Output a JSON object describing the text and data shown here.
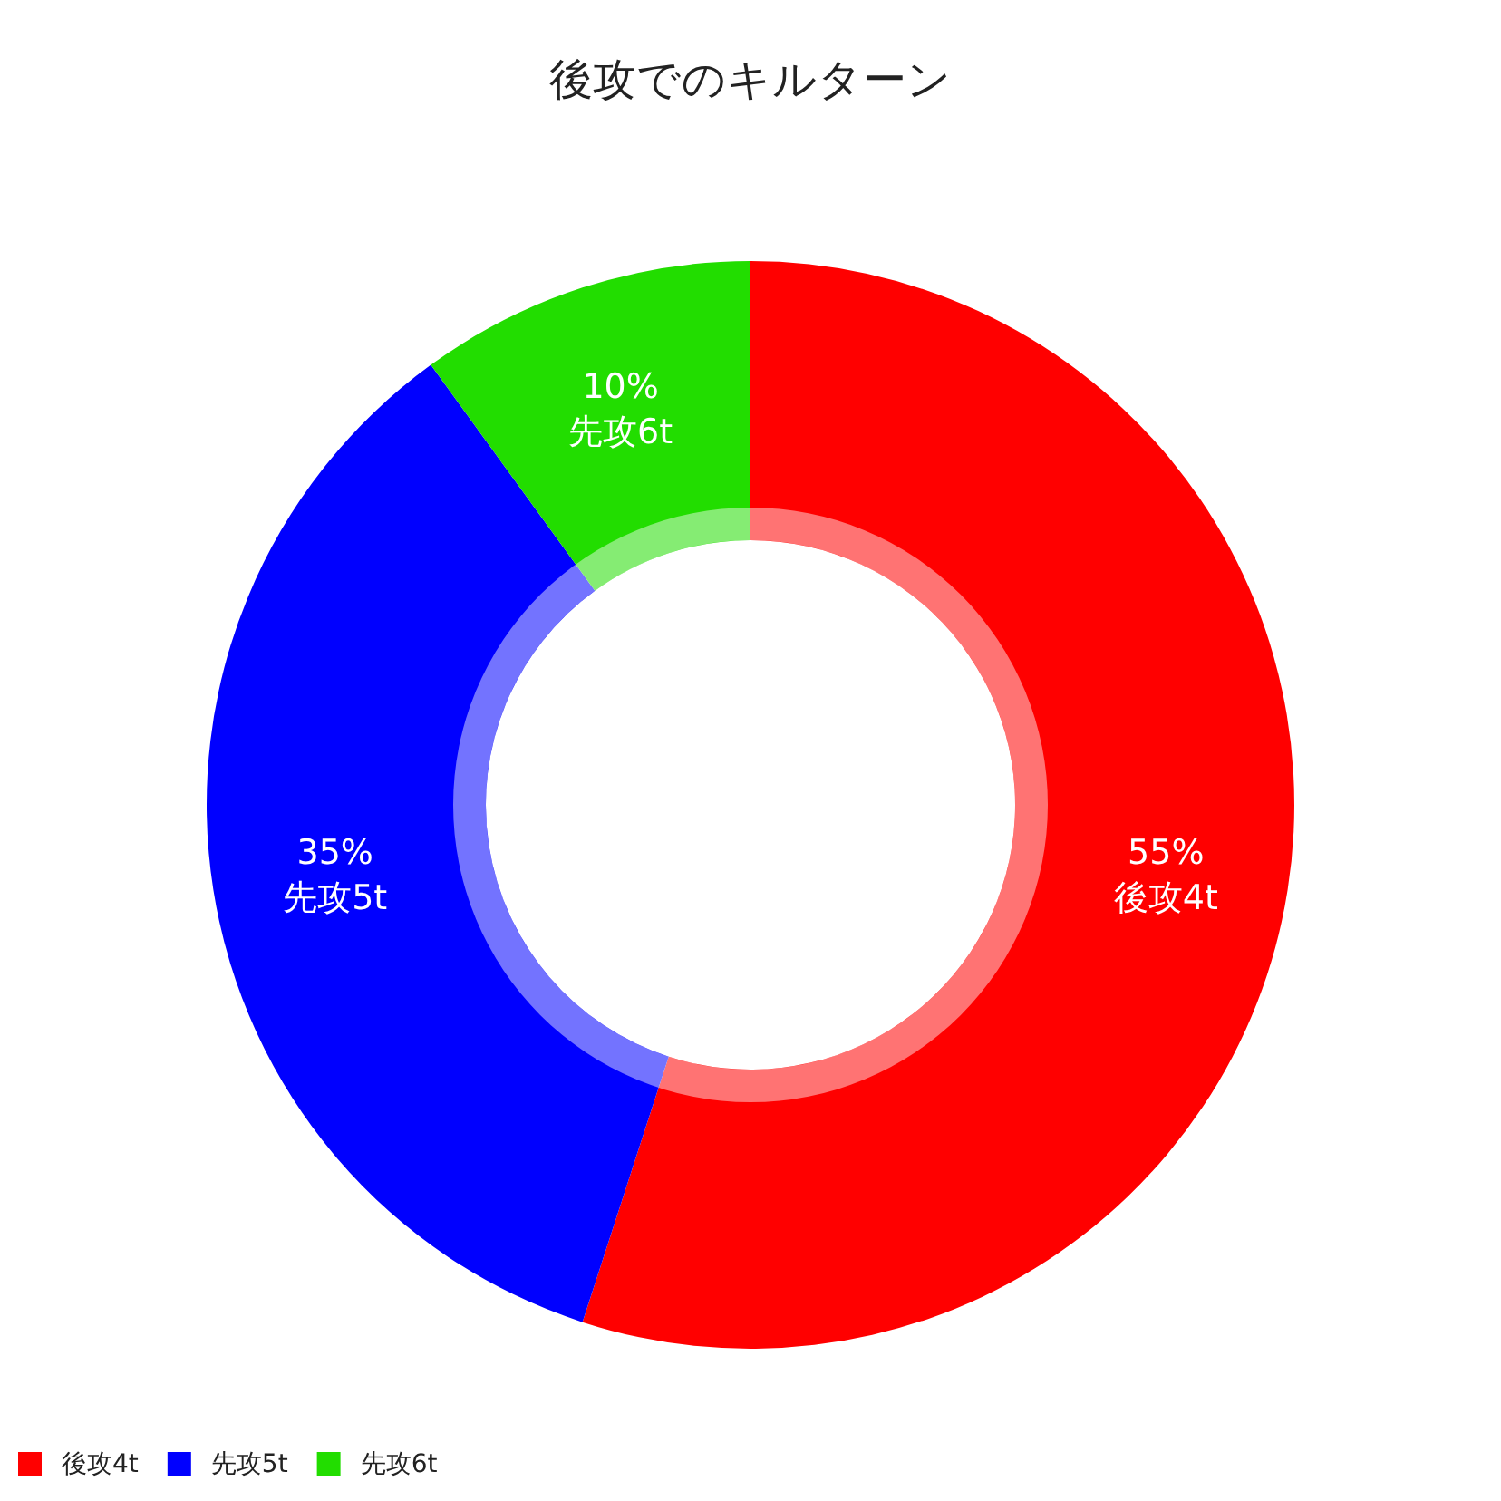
{
  "chart_data": {
    "type": "donut",
    "title": "後攻でのキルターン",
    "categories": [
      "後攻4t",
      "先攻5t",
      "先攻6t"
    ],
    "values": [
      55,
      35,
      10
    ],
    "colors": [
      "#ff0000",
      "#0000ff",
      "#22dd00"
    ],
    "value_labels": [
      "55%",
      "35%",
      "10%"
    ],
    "legend": "bottom left"
  }
}
